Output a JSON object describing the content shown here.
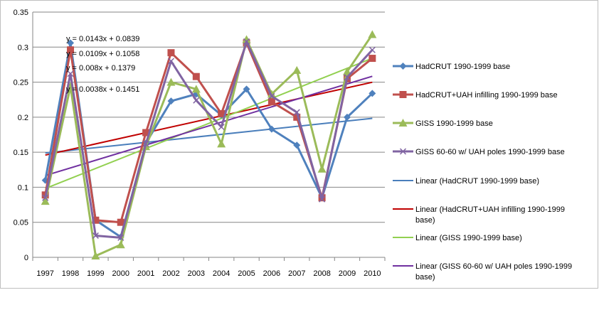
{
  "chart_data": {
    "type": "line",
    "title": "",
    "xlabel": "",
    "ylabel": "",
    "ylim": [
      0,
      0.35
    ],
    "yticks": [
      "0",
      "0.05",
      "0.1",
      "0.15",
      "0.2",
      "0.25",
      "0.3",
      "0.35"
    ],
    "grid": "horizontal",
    "legend_position": "right",
    "categories": [
      "1997",
      "1998",
      "1999",
      "2000",
      "2001",
      "2002",
      "2003",
      "2004",
      "2005",
      "2006",
      "2007",
      "2008",
      "2009",
      "2010"
    ],
    "series": [
      {
        "name": "HadCRUT 1990-1999 base",
        "color": "#4F81BD",
        "marker": "diamond",
        "values": [
          0.11,
          0.306,
          0.053,
          0.029,
          0.163,
          0.223,
          0.233,
          0.203,
          0.24,
          0.183,
          0.16,
          0.085,
          0.2,
          0.234
        ]
      },
      {
        "name": "HadCRUT+UAH infilling 1990-1999 base",
        "color": "#C0504D",
        "marker": "square",
        "values": [
          0.089,
          0.296,
          0.053,
          0.05,
          0.178,
          0.292,
          0.258,
          0.205,
          0.306,
          0.222,
          0.2,
          0.085,
          0.255,
          0.284
        ]
      },
      {
        "name": "GISS 1990-1999 base",
        "color": "#9BBB59",
        "marker": "triangle",
        "values": [
          0.08,
          0.244,
          0.002,
          0.018,
          0.158,
          0.25,
          0.24,
          0.162,
          0.311,
          0.233,
          0.267,
          0.126,
          0.265,
          0.318
        ]
      },
      {
        "name": "GISS 60-60 w/ UAH poles 1990-1999 base",
        "color": "#8064A2",
        "marker": "x",
        "values": [
          0.085,
          0.262,
          0.031,
          0.028,
          0.162,
          0.28,
          0.224,
          0.186,
          0.308,
          0.23,
          0.207,
          0.083,
          0.257,
          0.296
        ]
      }
    ],
    "trendlines": [
      {
        "name": "Linear (HadCRUT 1990-1999 base)",
        "color": "#4A7EBB",
        "slope": 0.0038,
        "intercept": 0.1451,
        "equation": "y = 0.0038x + 0.1451"
      },
      {
        "name": "Linear (HadCRUT+UAH infilling 1990-1999 base)",
        "color": "#C00000",
        "slope": 0.008,
        "intercept": 0.1379,
        "equation": "y = 0.008x + 0.1379"
      },
      {
        "name": "Linear (GISS 1990-1999 base)",
        "color": "#92D050",
        "slope": 0.0143,
        "intercept": 0.0839,
        "equation": "y = 0.0143x + 0.0839"
      },
      {
        "name": "Linear (GISS 60-60 w/ UAH poles 1990-1999 base)",
        "color": "#7030A0",
        "slope": 0.0109,
        "intercept": 0.1058,
        "equation": "y = 0.0109x + 0.1058"
      }
    ],
    "equation_labels": [
      "y = 0.0143x + 0.0839",
      "y = 0.0109x + 0.1058",
      "y = 0.008x + 0.1379",
      "y = 0.0038x + 0.1451"
    ]
  }
}
